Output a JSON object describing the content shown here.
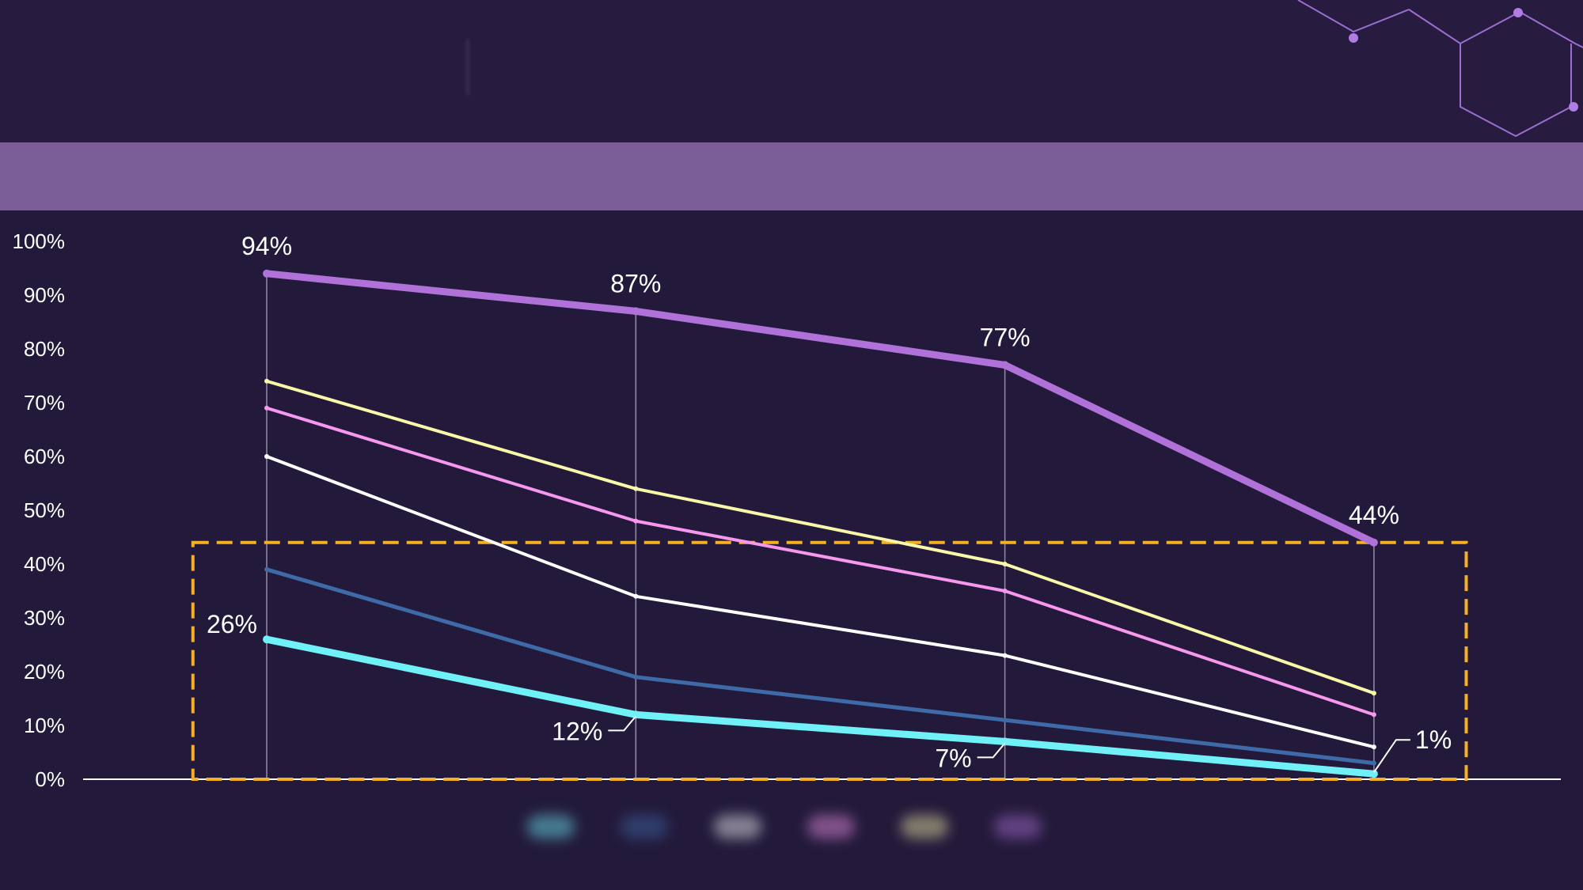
{
  "header": {
    "title": "",
    "description": ""
  },
  "banner": {
    "text": ""
  },
  "colors": {
    "background": "#231a3b",
    "axis": "#ffffff",
    "highlight_box": "#f5b025",
    "guide_lines": "#b9b2c9"
  },
  "chart_data": {
    "type": "line",
    "title": "",
    "xlabel": "",
    "ylabel": "",
    "ylim": [
      0,
      100
    ],
    "yticks": [
      "0%",
      "10%",
      "20%",
      "30%",
      "40%",
      "50%",
      "60%",
      "70%",
      "80%",
      "90%",
      "100%"
    ],
    "x": [
      1,
      2,
      3,
      4
    ],
    "grid": false,
    "legend_position": "bottom",
    "series": [
      {
        "color": "#b072d9",
        "width": 9,
        "values": [
          94,
          87,
          77,
          44
        ],
        "labels": [
          "94%",
          "87%",
          "77%",
          "44%"
        ]
      },
      {
        "color": "#f9f7a8",
        "width": 4,
        "values": [
          74,
          54,
          40,
          16
        ]
      },
      {
        "color": "#f797ee",
        "width": 4,
        "values": [
          69,
          48,
          35,
          12
        ]
      },
      {
        "color": "#ffffff",
        "width": 4,
        "values": [
          60,
          34,
          23,
          6
        ]
      },
      {
        "color": "#3e6aa8",
        "width": 5,
        "values": [
          39,
          19,
          11,
          3
        ]
      },
      {
        "color": "#70f1f8",
        "width": 9,
        "values": [
          26,
          12,
          7,
          1
        ],
        "labels": [
          "26%",
          "12%",
          "7%",
          "1%"
        ]
      }
    ],
    "highlight_box": {
      "x_from": 0.8,
      "x_to": 4.25,
      "y_from": 0,
      "y_to": 44
    }
  },
  "legend": [
    {
      "color": "#70f1f8",
      "label": ""
    },
    {
      "color": "#3e6aa8",
      "label": ""
    },
    {
      "color": "#ffffff",
      "label": ""
    },
    {
      "color": "#f797ee",
      "label": ""
    },
    {
      "color": "#f9f7a8",
      "label": ""
    },
    {
      "color": "#b072d9",
      "label": ""
    }
  ]
}
